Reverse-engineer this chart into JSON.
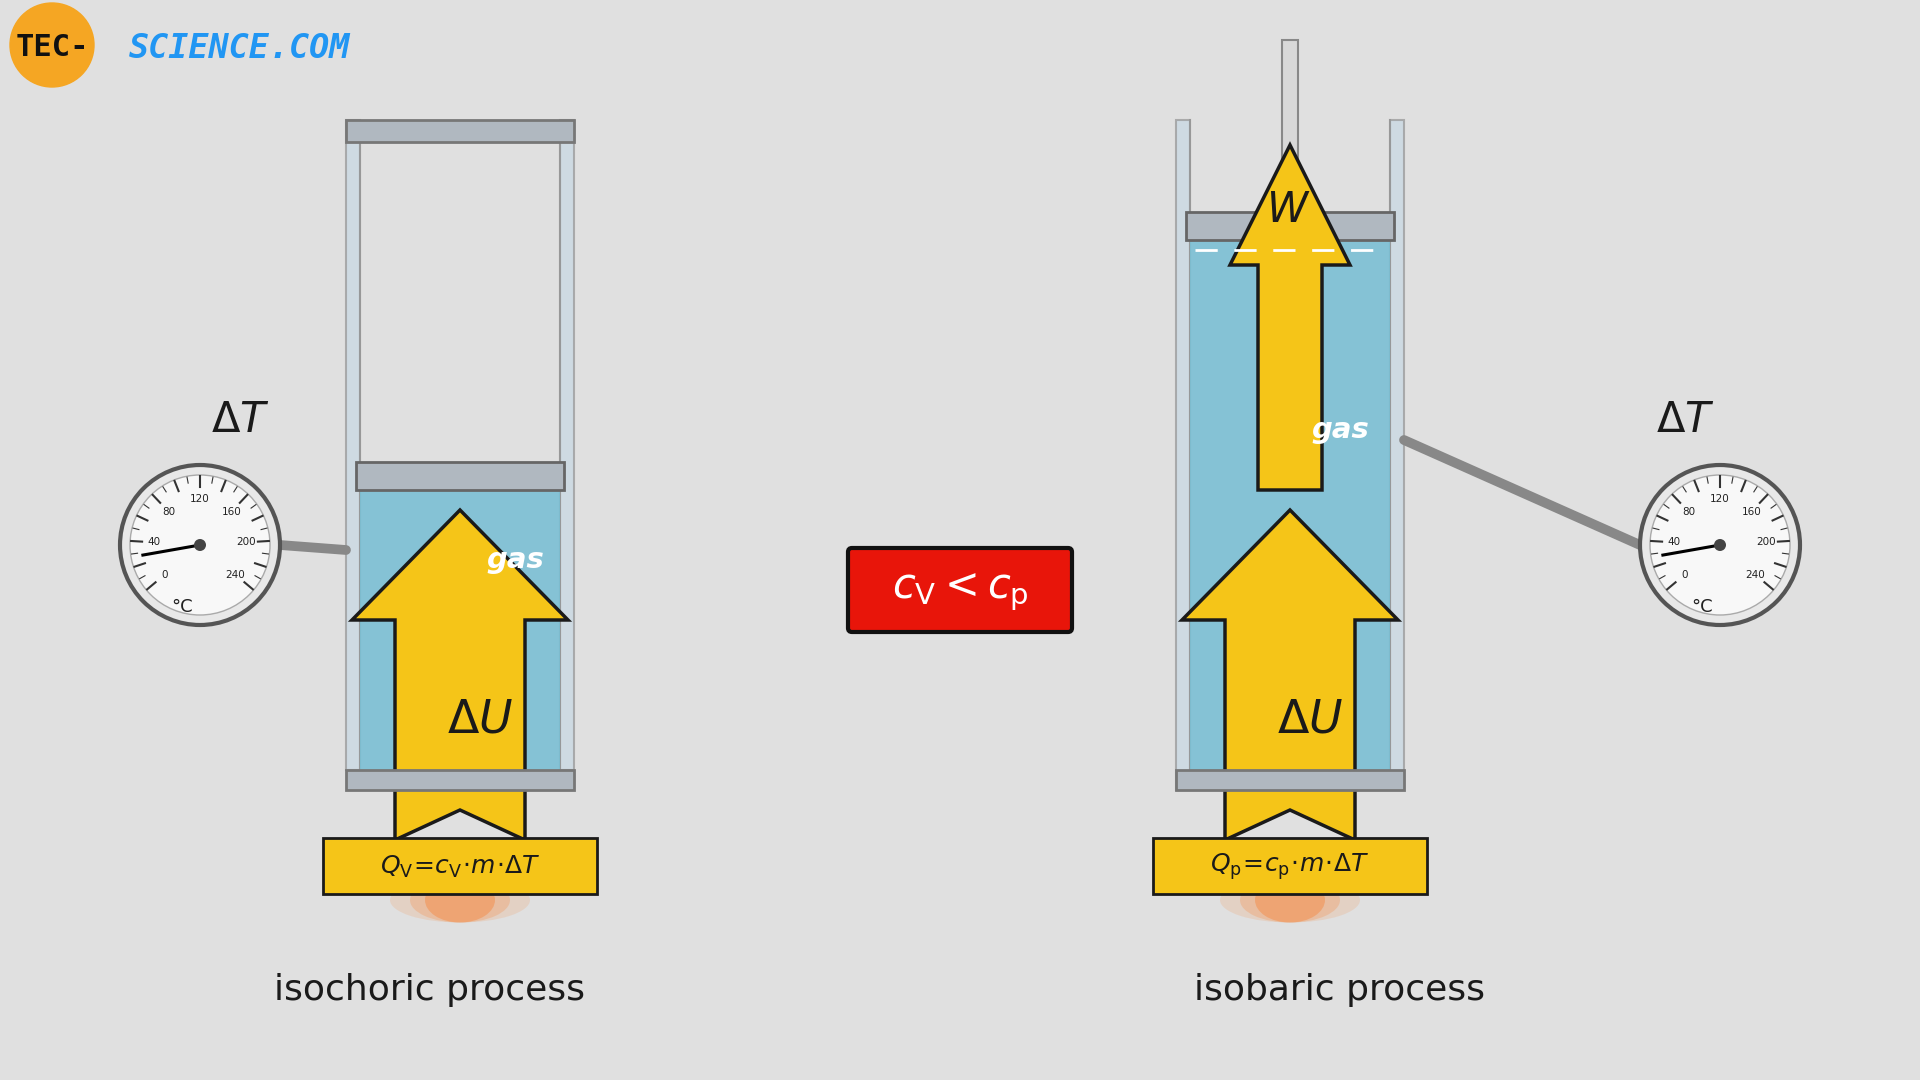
{
  "bg_color": "#e0e0e0",
  "orange_circle_color": "#F5A623",
  "left_label": "isochoric process",
  "right_label": "isobaric process",
  "gas_blue": "#7BBFD4",
  "arrow_yellow": "#F5C518",
  "formula_box_bg": "#e8150a",
  "gauge_labels": [
    "0",
    "",
    "40",
    "",
    "80",
    "",
    "120",
    "",
    "160",
    "",
    "200",
    "",
    "240"
  ]
}
